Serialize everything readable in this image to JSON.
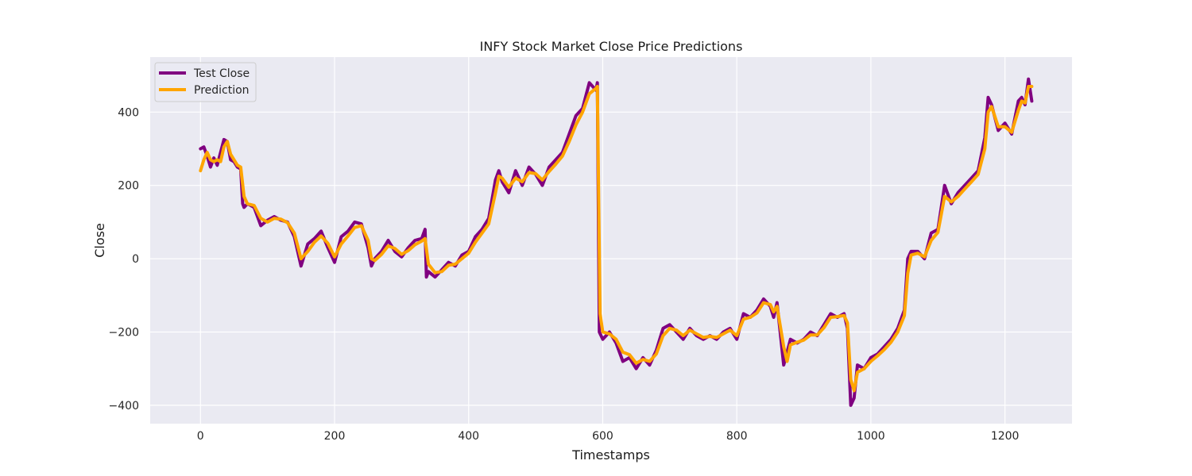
{
  "chart_data": {
    "type": "line",
    "title": "INFY Stock Market Close Price Predictions",
    "xlabel": "Timestamps",
    "ylabel": "Close",
    "xlim": [
      -75,
      1300
    ],
    "ylim": [
      -450,
      550
    ],
    "xticks": [
      0,
      200,
      400,
      600,
      800,
      1000,
      1200
    ],
    "yticks": [
      -400,
      -200,
      0,
      200,
      400
    ],
    "xtick_labels": [
      "0",
      "200",
      "400",
      "600",
      "800",
      "1000",
      "1200"
    ],
    "ytick_labels": [
      "−400",
      "−200",
      "0",
      "200",
      "400"
    ],
    "grid": true,
    "legend_position": "upper-left",
    "series": [
      {
        "name": "Test Close",
        "color": "#800080",
        "points": [
          [
            0,
            300
          ],
          [
            5,
            305
          ],
          [
            10,
            280
          ],
          [
            15,
            250
          ],
          [
            20,
            275
          ],
          [
            25,
            255
          ],
          [
            30,
            290
          ],
          [
            35,
            325
          ],
          [
            40,
            320
          ],
          [
            45,
            270
          ],
          [
            50,
            265
          ],
          [
            55,
            250
          ],
          [
            60,
            245
          ],
          [
            63,
            150
          ],
          [
            65,
            140
          ],
          [
            70,
            150
          ],
          [
            80,
            140
          ],
          [
            90,
            90
          ],
          [
            100,
            105
          ],
          [
            110,
            115
          ],
          [
            120,
            105
          ],
          [
            130,
            100
          ],
          [
            140,
            60
          ],
          [
            145,
            20
          ],
          [
            150,
            -20
          ],
          [
            160,
            40
          ],
          [
            170,
            55
          ],
          [
            180,
            75
          ],
          [
            190,
            30
          ],
          [
            200,
            -10
          ],
          [
            210,
            60
          ],
          [
            220,
            75
          ],
          [
            230,
            100
          ],
          [
            240,
            95
          ],
          [
            250,
            30
          ],
          [
            255,
            -20
          ],
          [
            260,
            0
          ],
          [
            270,
            20
          ],
          [
            280,
            50
          ],
          [
            290,
            20
          ],
          [
            300,
            5
          ],
          [
            310,
            30
          ],
          [
            320,
            50
          ],
          [
            330,
            55
          ],
          [
            335,
            80
          ],
          [
            337,
            -50
          ],
          [
            340,
            -35
          ],
          [
            350,
            -50
          ],
          [
            360,
            -30
          ],
          [
            370,
            -10
          ],
          [
            380,
            -20
          ],
          [
            390,
            10
          ],
          [
            400,
            20
          ],
          [
            410,
            60
          ],
          [
            420,
            80
          ],
          [
            430,
            110
          ],
          [
            440,
            215
          ],
          [
            445,
            240
          ],
          [
            450,
            210
          ],
          [
            460,
            180
          ],
          [
            470,
            240
          ],
          [
            480,
            200
          ],
          [
            490,
            250
          ],
          [
            500,
            230
          ],
          [
            510,
            200
          ],
          [
            520,
            250
          ],
          [
            530,
            270
          ],
          [
            540,
            290
          ],
          [
            550,
            340
          ],
          [
            560,
            390
          ],
          [
            570,
            410
          ],
          [
            580,
            480
          ],
          [
            590,
            460
          ],
          [
            592,
            480
          ],
          [
            595,
            -200
          ],
          [
            600,
            -220
          ],
          [
            610,
            -200
          ],
          [
            620,
            -230
          ],
          [
            630,
            -280
          ],
          [
            640,
            -270
          ],
          [
            650,
            -300
          ],
          [
            660,
            -270
          ],
          [
            670,
            -290
          ],
          [
            680,
            -250
          ],
          [
            690,
            -190
          ],
          [
            700,
            -180
          ],
          [
            710,
            -200
          ],
          [
            720,
            -220
          ],
          [
            730,
            -190
          ],
          [
            740,
            -210
          ],
          [
            750,
            -220
          ],
          [
            760,
            -210
          ],
          [
            770,
            -220
          ],
          [
            780,
            -200
          ],
          [
            790,
            -190
          ],
          [
            800,
            -220
          ],
          [
            810,
            -150
          ],
          [
            820,
            -160
          ],
          [
            830,
            -140
          ],
          [
            840,
            -110
          ],
          [
            850,
            -130
          ],
          [
            855,
            -160
          ],
          [
            860,
            -120
          ],
          [
            870,
            -290
          ],
          [
            880,
            -220
          ],
          [
            890,
            -230
          ],
          [
            900,
            -220
          ],
          [
            910,
            -200
          ],
          [
            920,
            -210
          ],
          [
            930,
            -180
          ],
          [
            940,
            -150
          ],
          [
            950,
            -160
          ],
          [
            960,
            -150
          ],
          [
            965,
            -190
          ],
          [
            970,
            -400
          ],
          [
            975,
            -380
          ],
          [
            980,
            -290
          ],
          [
            990,
            -300
          ],
          [
            1000,
            -270
          ],
          [
            1010,
            -260
          ],
          [
            1020,
            -240
          ],
          [
            1030,
            -220
          ],
          [
            1040,
            -190
          ],
          [
            1050,
            -140
          ],
          [
            1055,
            0
          ],
          [
            1060,
            20
          ],
          [
            1070,
            20
          ],
          [
            1080,
            0
          ],
          [
            1090,
            70
          ],
          [
            1100,
            80
          ],
          [
            1110,
            200
          ],
          [
            1120,
            150
          ],
          [
            1130,
            180
          ],
          [
            1140,
            200
          ],
          [
            1150,
            220
          ],
          [
            1160,
            240
          ],
          [
            1170,
            330
          ],
          [
            1175,
            440
          ],
          [
            1180,
            420
          ],
          [
            1190,
            350
          ],
          [
            1200,
            370
          ],
          [
            1210,
            340
          ],
          [
            1220,
            430
          ],
          [
            1225,
            440
          ],
          [
            1230,
            420
          ],
          [
            1235,
            490
          ],
          [
            1240,
            430
          ]
        ]
      },
      {
        "name": "Prediction",
        "color": "#ffa500",
        "points": [
          [
            0,
            240
          ],
          [
            5,
            270
          ],
          [
            10,
            290
          ],
          [
            15,
            270
          ],
          [
            20,
            265
          ],
          [
            25,
            270
          ],
          [
            30,
            265
          ],
          [
            35,
            305
          ],
          [
            40,
            320
          ],
          [
            45,
            285
          ],
          [
            50,
            270
          ],
          [
            55,
            255
          ],
          [
            60,
            250
          ],
          [
            65,
            170
          ],
          [
            70,
            150
          ],
          [
            80,
            145
          ],
          [
            90,
            110
          ],
          [
            100,
            100
          ],
          [
            110,
            110
          ],
          [
            120,
            108
          ],
          [
            130,
            98
          ],
          [
            140,
            70
          ],
          [
            145,
            35
          ],
          [
            150,
            0
          ],
          [
            160,
            20
          ],
          [
            170,
            45
          ],
          [
            180,
            62
          ],
          [
            190,
            42
          ],
          [
            200,
            5
          ],
          [
            210,
            40
          ],
          [
            220,
            62
          ],
          [
            230,
            85
          ],
          [
            240,
            90
          ],
          [
            250,
            50
          ],
          [
            255,
            0
          ],
          [
            260,
            -5
          ],
          [
            270,
            12
          ],
          [
            280,
            35
          ],
          [
            290,
            28
          ],
          [
            300,
            12
          ],
          [
            310,
            22
          ],
          [
            320,
            38
          ],
          [
            330,
            48
          ],
          [
            335,
            55
          ],
          [
            340,
            -15
          ],
          [
            350,
            -38
          ],
          [
            360,
            -35
          ],
          [
            370,
            -18
          ],
          [
            380,
            -15
          ],
          [
            390,
            0
          ],
          [
            400,
            15
          ],
          [
            410,
            45
          ],
          [
            420,
            70
          ],
          [
            430,
            95
          ],
          [
            440,
            180
          ],
          [
            445,
            225
          ],
          [
            450,
            220
          ],
          [
            460,
            195
          ],
          [
            470,
            220
          ],
          [
            480,
            210
          ],
          [
            490,
            235
          ],
          [
            500,
            232
          ],
          [
            510,
            215
          ],
          [
            520,
            238
          ],
          [
            530,
            258
          ],
          [
            540,
            280
          ],
          [
            550,
            320
          ],
          [
            560,
            365
          ],
          [
            570,
            400
          ],
          [
            580,
            450
          ],
          [
            590,
            465
          ],
          [
            592,
            470
          ],
          [
            596,
            -150
          ],
          [
            600,
            -200
          ],
          [
            610,
            -205
          ],
          [
            620,
            -220
          ],
          [
            630,
            -255
          ],
          [
            640,
            -262
          ],
          [
            650,
            -285
          ],
          [
            660,
            -275
          ],
          [
            670,
            -280
          ],
          [
            680,
            -260
          ],
          [
            690,
            -210
          ],
          [
            700,
            -190
          ],
          [
            710,
            -195
          ],
          [
            720,
            -210
          ],
          [
            730,
            -195
          ],
          [
            740,
            -205
          ],
          [
            750,
            -215
          ],
          [
            760,
            -212
          ],
          [
            770,
            -215
          ],
          [
            780,
            -205
          ],
          [
            790,
            -195
          ],
          [
            800,
            -210
          ],
          [
            810,
            -165
          ],
          [
            820,
            -160
          ],
          [
            830,
            -148
          ],
          [
            840,
            -120
          ],
          [
            850,
            -125
          ],
          [
            855,
            -145
          ],
          [
            860,
            -130
          ],
          [
            870,
            -240
          ],
          [
            875,
            -280
          ],
          [
            880,
            -235
          ],
          [
            890,
            -228
          ],
          [
            900,
            -222
          ],
          [
            910,
            -208
          ],
          [
            920,
            -208
          ],
          [
            930,
            -188
          ],
          [
            940,
            -160
          ],
          [
            950,
            -158
          ],
          [
            960,
            -155
          ],
          [
            965,
            -175
          ],
          [
            970,
            -330
          ],
          [
            975,
            -360
          ],
          [
            980,
            -310
          ],
          [
            990,
            -300
          ],
          [
            1000,
            -280
          ],
          [
            1010,
            -265
          ],
          [
            1020,
            -248
          ],
          [
            1030,
            -228
          ],
          [
            1040,
            -200
          ],
          [
            1050,
            -155
          ],
          [
            1055,
            -40
          ],
          [
            1060,
            10
          ],
          [
            1070,
            15
          ],
          [
            1080,
            5
          ],
          [
            1090,
            50
          ],
          [
            1100,
            72
          ],
          [
            1110,
            170
          ],
          [
            1120,
            155
          ],
          [
            1130,
            170
          ],
          [
            1140,
            190
          ],
          [
            1150,
            210
          ],
          [
            1160,
            230
          ],
          [
            1170,
            300
          ],
          [
            1175,
            400
          ],
          [
            1180,
            415
          ],
          [
            1190,
            360
          ],
          [
            1200,
            360
          ],
          [
            1210,
            345
          ],
          [
            1220,
            405
          ],
          [
            1225,
            430
          ],
          [
            1230,
            425
          ],
          [
            1235,
            470
          ],
          [
            1240,
            470
          ]
        ]
      }
    ]
  }
}
